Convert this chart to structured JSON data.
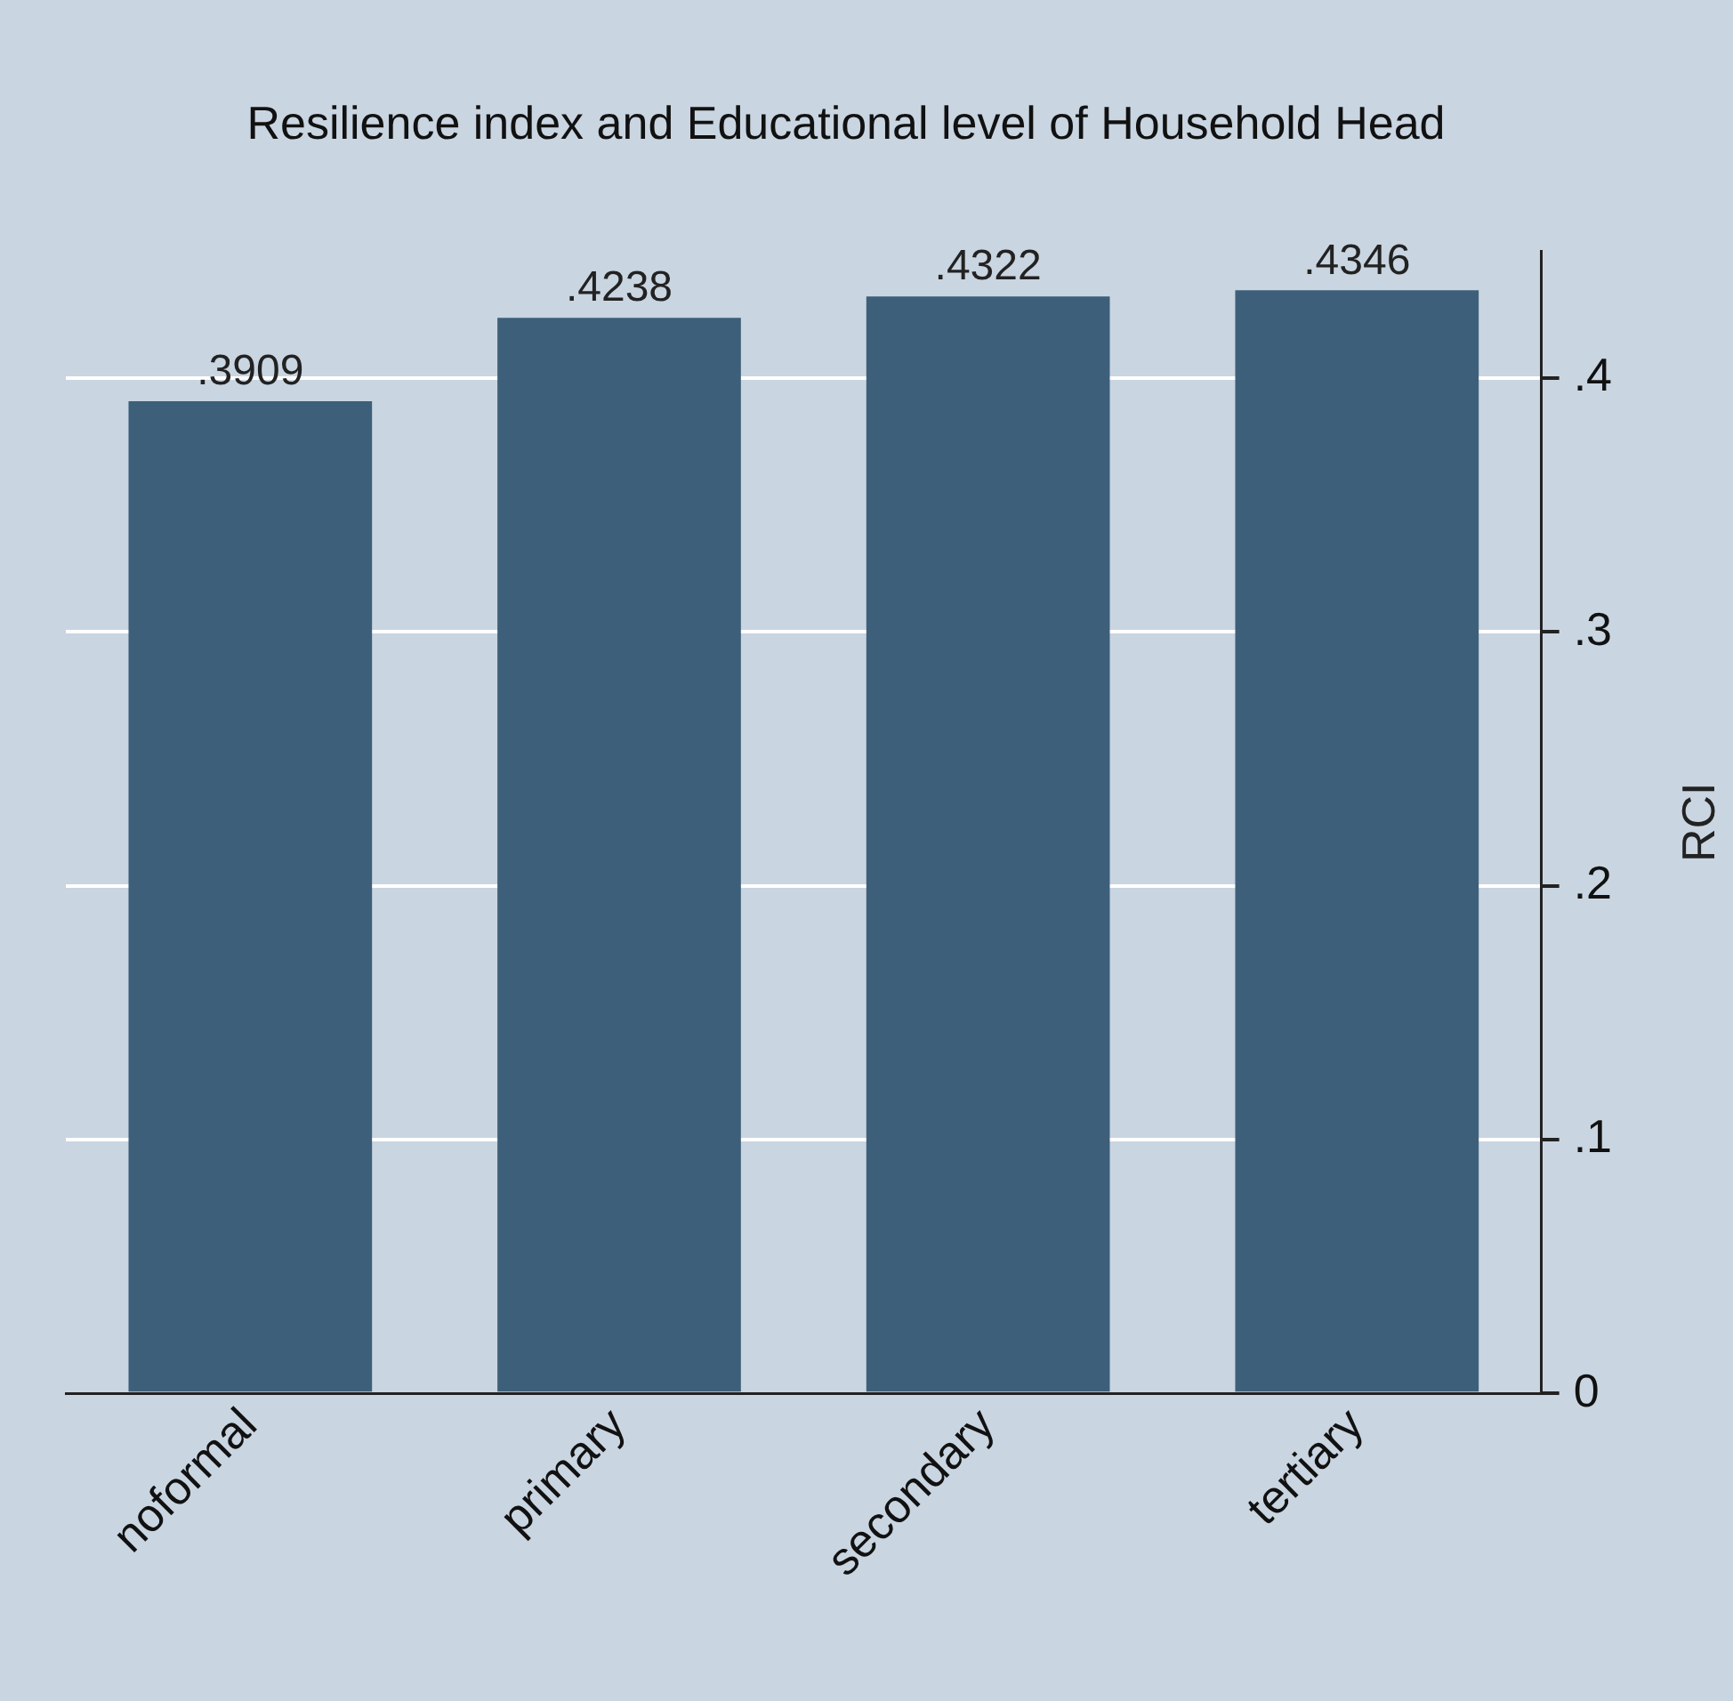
{
  "chart_data": {
    "type": "bar",
    "title": "Resilience index and Educational level of Household Head",
    "ylabel": "RCI",
    "categories": [
      "noformal",
      "primary",
      "secondary",
      "tertiary"
    ],
    "values": [
      0.3909,
      0.4238,
      0.4322,
      0.4346
    ],
    "value_labels": [
      ".3909",
      ".4238",
      ".4322",
      ".4346"
    ],
    "color": "#3d5f7a",
    "ylim": [
      0,
      0.45
    ],
    "yticks": [
      0,
      {
        "value": 0.1,
        "label": ".1"
      },
      {
        "value": 0.2,
        "label": ".2"
      },
      {
        "value": 0.3,
        "label": ".3"
      },
      {
        "value": 0.4,
        "label": ".4"
      }
    ],
    "grid": "y",
    "legend": false
  }
}
